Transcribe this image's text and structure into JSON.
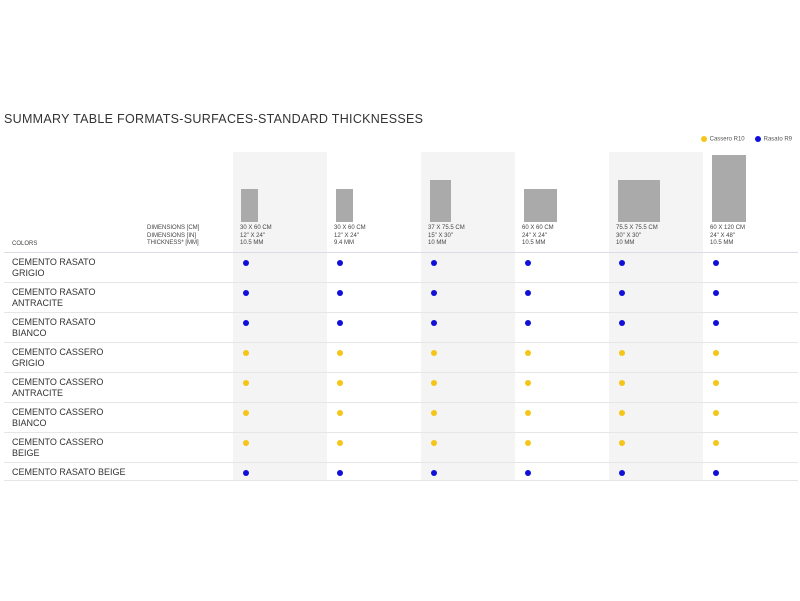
{
  "title": "SUMMARY TABLE FORMATS-SURFACES-STANDARD THICKNESSES",
  "legend": [
    {
      "label": "Cassero R10",
      "color": "#f5c518"
    },
    {
      "label": "Rasato R9",
      "color": "#1010d8"
    }
  ],
  "header": {
    "colors_label": "COLORS",
    "dim_cm_label": "DIMENSIONS [CM]",
    "dim_in_label": "DIMENSIONS [IN]",
    "thickness_label": "THICKNESS* [MM]"
  },
  "formats": [
    {
      "cm": "30 X 60 CM",
      "in": "12\" X 24\"",
      "mm": "10.5 MM"
    },
    {
      "cm": "30 X 60 CM",
      "in": "12\" X 24\"",
      "mm": "9.4 MM"
    },
    {
      "cm": "37 X 75.5 CM",
      "in": "15\" X 30\"",
      "mm": "10 MM"
    },
    {
      "cm": "60 X 60 CM",
      "in": "24\" X 24\"",
      "mm": "10.5 MM"
    },
    {
      "cm": "75.5 X 75.5 CM",
      "in": "30\" X 30\"",
      "mm": "10 MM"
    },
    {
      "cm": "60 X 120 CM",
      "in": "24\" X 48\"",
      "mm": "10.5 MM"
    }
  ],
  "rows": [
    {
      "label": "CEMENTO RASATO GRIGIO",
      "surface": "Rasato R9"
    },
    {
      "label": "CEMENTO RASATO ANTRACITE",
      "surface": "Rasato R9"
    },
    {
      "label": "CEMENTO RASATO BIANCO",
      "surface": "Rasato R9"
    },
    {
      "label": "CEMENTO CASSERO GRIGIO",
      "surface": "Cassero R10"
    },
    {
      "label": "CEMENTO CASSERO ANTRACITE",
      "surface": "Cassero R10"
    },
    {
      "label": "CEMENTO CASSERO BIANCO",
      "surface": "Cassero R10"
    },
    {
      "label": "CEMENTO CASSERO BEIGE",
      "surface": "Cassero R10"
    },
    {
      "label": "CEMENTO RASATO BEIGE",
      "surface": "Rasato R9"
    }
  ]
}
